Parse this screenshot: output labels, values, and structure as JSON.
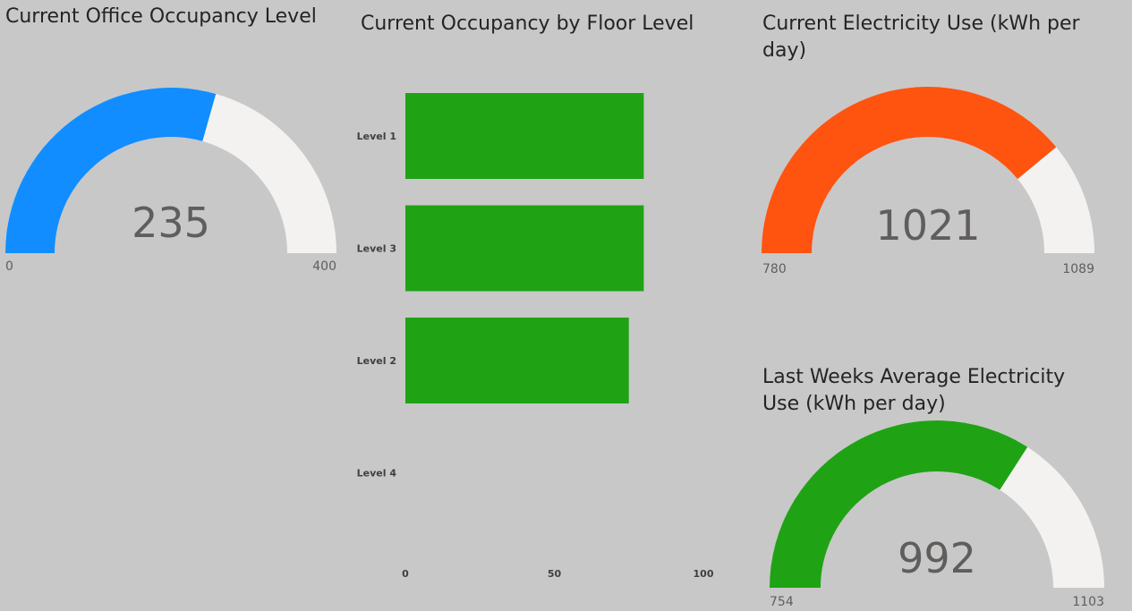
{
  "occupancy_gauge": {
    "title": "Current Office Occupancy Level",
    "value_label": "235",
    "min_label": "0",
    "max_label": "400"
  },
  "floor_chart": {
    "title": "Current Occupancy by Floor Level"
  },
  "electricity_gauge": {
    "title": "Current Electricity Use (kWh per day)",
    "value_label": "1021",
    "min_label": "780",
    "max_label": "1089"
  },
  "lastweek_gauge": {
    "title": "Last Weeks Average Electricity Use (kWh per day)",
    "value_label": "992",
    "min_label": "754",
    "max_label": "1103"
  },
  "chart_data": [
    {
      "type": "gauge",
      "title": "Current Office Occupancy Level",
      "value": 235,
      "min": 0,
      "max": 400,
      "fill_color": "#118dff",
      "track_color": "#f3f2f1"
    },
    {
      "type": "bar",
      "orientation": "horizontal",
      "title": "Current Occupancy by Floor Level",
      "categories": [
        "Level 1",
        "Level 3",
        "Level 2",
        "Level 4"
      ],
      "values": [
        80,
        80,
        75,
        0
      ],
      "xlim": [
        0,
        100
      ],
      "xticks": [
        "0",
        "50",
        "100"
      ],
      "bar_color": "#20a215",
      "grid": false
    },
    {
      "type": "gauge",
      "title": "Current Electricity Use (kWh per day)",
      "value": 1021,
      "min": 780,
      "max": 1089,
      "fill_color": "#ff5310",
      "track_color": "#f3f2f1"
    },
    {
      "type": "gauge",
      "title": "Last Weeks Average Electricity Use (kWh per day)",
      "value": 992,
      "min": 754,
      "max": 1103,
      "fill_color": "#20a215",
      "track_color": "#f3f2f1"
    }
  ]
}
